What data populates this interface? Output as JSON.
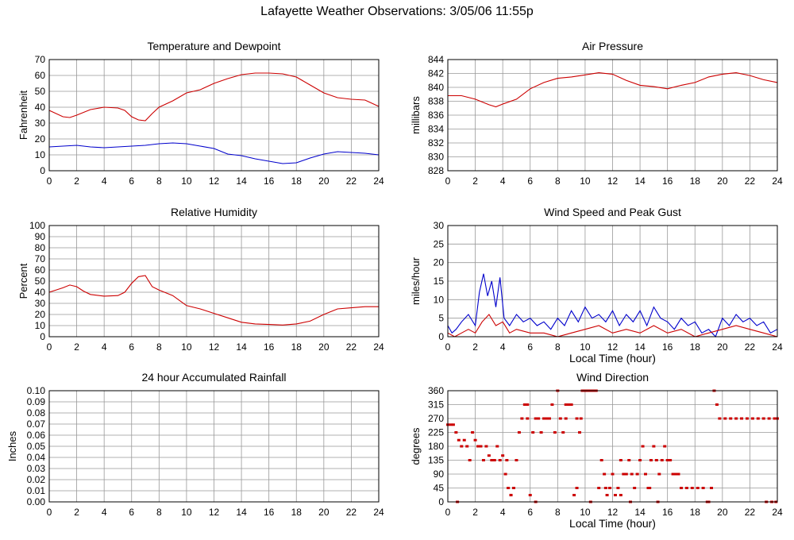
{
  "page_title": "Lafayette Weather Observations: 3/05/06 11:55p",
  "colors": {
    "red": "#cc0000",
    "blue": "#0000cc",
    "grid": "#999999",
    "frame": "#000000"
  },
  "chart_data": [
    {
      "id": "temp",
      "type": "line",
      "title": "Temperature and Dewpoint",
      "ylabel": "Fahrenheit",
      "xlabel": "",
      "xlim": [
        0,
        24
      ],
      "ylim": [
        0,
        70
      ],
      "xticks": [
        0,
        2,
        4,
        6,
        8,
        10,
        12,
        14,
        16,
        18,
        20,
        22,
        24
      ],
      "yticks": [
        0,
        10,
        20,
        30,
        40,
        50,
        60,
        70
      ],
      "grid": true,
      "series": [
        {
          "color": "#cc0000",
          "x": [
            0,
            1,
            1.5,
            2,
            3,
            4,
            5,
            5.5,
            6,
            6.5,
            7,
            7.5,
            8,
            9,
            10,
            11,
            12,
            13,
            14,
            15,
            16,
            17,
            18,
            19,
            20,
            21,
            22,
            23,
            24
          ],
          "y": [
            38,
            34,
            33.5,
            35,
            38.5,
            40,
            39.5,
            38,
            34,
            32,
            31.5,
            36,
            40,
            44,
            49,
            51,
            55,
            58,
            60.5,
            61.5,
            61.5,
            61,
            59,
            54,
            49,
            46,
            45,
            44.5,
            40.5
          ]
        },
        {
          "color": "#0000cc",
          "x": [
            0,
            1,
            2,
            3,
            4,
            5,
            6,
            7,
            8,
            9,
            10,
            11,
            12,
            13,
            14,
            15,
            16,
            17,
            18,
            19,
            20,
            21,
            22,
            23,
            24
          ],
          "y": [
            15,
            15.5,
            16,
            15,
            14.5,
            15,
            15.5,
            16,
            17,
            17.5,
            17,
            15.5,
            14,
            10.5,
            9.5,
            7.5,
            6,
            4.5,
            5,
            8,
            10.5,
            12,
            11.5,
            11,
            10
          ]
        }
      ]
    },
    {
      "id": "pressure",
      "type": "line",
      "title": "Air Pressure",
      "ylabel": "millibars",
      "xlabel": "",
      "xlim": [
        0,
        24
      ],
      "ylim": [
        828,
        844
      ],
      "xticks": [
        0,
        2,
        4,
        6,
        8,
        10,
        12,
        14,
        16,
        18,
        20,
        22,
        24
      ],
      "yticks": [
        828,
        830,
        832,
        834,
        836,
        838,
        840,
        842,
        844
      ],
      "grid": true,
      "series": [
        {
          "color": "#cc0000",
          "x": [
            0,
            1,
            2,
            3,
            3.5,
            4,
            5,
            6,
            7,
            8,
            9,
            10,
            11,
            12,
            13,
            14,
            15,
            16,
            17,
            18,
            19,
            20,
            21,
            22,
            23,
            24
          ],
          "y": [
            838.8,
            838.8,
            838.3,
            837.5,
            837.2,
            837.6,
            838.3,
            839.8,
            840.7,
            841.3,
            841.5,
            841.8,
            842.1,
            841.9,
            841,
            840.3,
            840.1,
            839.8,
            840.3,
            840.7,
            841.5,
            841.9,
            842.1,
            841.7,
            841.1,
            840.7
          ]
        }
      ]
    },
    {
      "id": "humidity",
      "type": "line",
      "title": "Relative Humidity",
      "ylabel": "Percent",
      "xlabel": "",
      "xlim": [
        0,
        24
      ],
      "ylim": [
        0,
        100
      ],
      "xticks": [
        0,
        2,
        4,
        6,
        8,
        10,
        12,
        14,
        16,
        18,
        20,
        22,
        24
      ],
      "yticks": [
        0,
        10,
        20,
        30,
        40,
        50,
        60,
        70,
        80,
        90,
        100
      ],
      "grid": true,
      "series": [
        {
          "color": "#cc0000",
          "x": [
            0,
            1,
            1.5,
            2,
            2.5,
            3,
            4,
            5,
            5.5,
            6,
            6.5,
            7,
            7.5,
            8,
            9,
            10,
            11,
            12,
            13,
            14,
            15,
            16,
            17,
            18,
            19,
            20,
            21,
            22,
            23,
            24
          ],
          "y": [
            40,
            44,
            46.5,
            45,
            41,
            38,
            36.5,
            37,
            40,
            48,
            54,
            55,
            45,
            42,
            37,
            28,
            25,
            21,
            17,
            13,
            11.5,
            11,
            10.5,
            11.5,
            14,
            20,
            25,
            26,
            27,
            27
          ]
        }
      ]
    },
    {
      "id": "wind",
      "type": "line",
      "title": "Wind Speed and Peak Gust",
      "ylabel": "miles/hour",
      "xlabel": "Local Time (hour)",
      "xlim": [
        0,
        24
      ],
      "ylim": [
        0,
        30
      ],
      "xticks": [
        0,
        2,
        4,
        6,
        8,
        10,
        12,
        14,
        16,
        18,
        20,
        22,
        24
      ],
      "yticks": [
        0,
        5,
        10,
        15,
        20,
        25,
        30
      ],
      "grid": true,
      "series": [
        {
          "color": "#0000cc",
          "x": [
            0,
            0.3,
            0.6,
            1,
            1.5,
            2,
            2.3,
            2.6,
            2.9,
            3.2,
            3.5,
            3.8,
            4.1,
            4.5,
            5,
            5.5,
            6,
            6.5,
            7,
            7.5,
            8,
            8.5,
            9,
            9.5,
            10,
            10.5,
            11,
            11.5,
            12,
            12.5,
            13,
            13.5,
            14,
            14.5,
            15,
            15.5,
            16,
            16.5,
            17,
            17.5,
            18,
            18.5,
            19,
            19.5,
            20,
            20.5,
            21,
            21.5,
            22,
            22.5,
            23,
            23.5,
            24
          ],
          "y": [
            3,
            1,
            2,
            4,
            6,
            3,
            12,
            17,
            11,
            15,
            8,
            16,
            5,
            3,
            6,
            4,
            5,
            3,
            4,
            2,
            5,
            3,
            7,
            4,
            8,
            5,
            6,
            4,
            7,
            3,
            6,
            4,
            7,
            3,
            8,
            5,
            4,
            2,
            5,
            3,
            4,
            1,
            2,
            0,
            5,
            3,
            6,
            4,
            5,
            3,
            4,
            1,
            2
          ]
        },
        {
          "color": "#cc0000",
          "x": [
            0,
            0.5,
            1,
            1.5,
            2,
            2.5,
            3,
            3.5,
            4,
            4.5,
            5,
            6,
            7,
            8,
            9,
            10,
            11,
            12,
            13,
            14,
            15,
            16,
            17,
            18,
            19,
            20,
            21,
            22,
            23,
            24
          ],
          "y": [
            1,
            0,
            1,
            2,
            1,
            4,
            6,
            3,
            4,
            1,
            2,
            1,
            1,
            0,
            1,
            2,
            3,
            1,
            2,
            1,
            3,
            1,
            2,
            0,
            1,
            2,
            3,
            2,
            1,
            0
          ]
        }
      ]
    },
    {
      "id": "rain",
      "type": "line",
      "title": "24 hour Accumulated Rainfall",
      "ylabel": "Inches",
      "xlabel": "",
      "xlim": [
        0,
        24
      ],
      "ylim": [
        0,
        0.1
      ],
      "xticks": [
        0,
        2,
        4,
        6,
        8,
        10,
        12,
        14,
        16,
        18,
        20,
        22,
        24
      ],
      "yticks": [
        "0.00",
        "0.01",
        "0.02",
        "0.03",
        "0.04",
        "0.05",
        "0.06",
        "0.07",
        "0.08",
        "0.09",
        "0.10"
      ],
      "grid": true,
      "series": [
        {
          "color": "#cc0000",
          "x": [
            0,
            24
          ],
          "y": [
            0,
            0
          ]
        }
      ]
    },
    {
      "id": "winddir",
      "type": "scatter",
      "title": "Wind Direction",
      "ylabel": "degrees",
      "xlabel": "Local Time (hour)",
      "xlim": [
        0,
        24
      ],
      "ylim": [
        0,
        360
      ],
      "xticks": [
        0,
        2,
        4,
        6,
        8,
        10,
        12,
        14,
        16,
        18,
        20,
        22,
        24
      ],
      "yticks": [
        0,
        45,
        90,
        135,
        180,
        225,
        270,
        315,
        360
      ],
      "grid": true,
      "series": [
        {
          "color": "#cc0000",
          "x": [
            0,
            0.2,
            0.4,
            0.6,
            0.8,
            1.0,
            1.2,
            1.4,
            1.6,
            1.8,
            2.0,
            2.2,
            2.4,
            2.6,
            2.8,
            3.0,
            3.2,
            3.4,
            3.6,
            3.8,
            4.0,
            4.2,
            4.4,
            4.6,
            4.8,
            5.0,
            5.2,
            5.4,
            5.6,
            5.8,
            6.0,
            6.2,
            6.4,
            6.6,
            6.8,
            7.0,
            7.2,
            7.4,
            7.6,
            7.8,
            8.0,
            8.2,
            8.4,
            8.6,
            8.8,
            9.0,
            9.2,
            9.4,
            9.6,
            9.8,
            10.0,
            10.2,
            10.4,
            10.6,
            10.8,
            11.0,
            11.2,
            11.4,
            11.6,
            11.8,
            12.0,
            12.2,
            12.4,
            12.6,
            12.8,
            13.0,
            13.2,
            13.4,
            13.6,
            13.8,
            14.0,
            14.2,
            14.4,
            14.6,
            14.8,
            15.0,
            15.2,
            15.4,
            15.6,
            15.8,
            16.0,
            16.2,
            16.4,
            16.6,
            16.8,
            17.0,
            17.4,
            17.8,
            18.2,
            18.6,
            19.0,
            19.2,
            19.4,
            19.6,
            19.8,
            20.2,
            20.6,
            21.0,
            21.4,
            21.8,
            22.2,
            22.6,
            23.0,
            23.4,
            23.8,
            24.0,
            0.7,
            2.3,
            4.3,
            4.6,
            5.8,
            6.4,
            8.6,
            9.4,
            9.7,
            10.4,
            11.5,
            12.6,
            13.3,
            14.7,
            15.3,
            18.9,
            23.2,
            23.6,
            23.9
          ],
          "y": [
            250,
            250,
            250,
            225,
            200,
            180,
            200,
            180,
            135,
            225,
            200,
            180,
            180,
            135,
            180,
            150,
            135,
            135,
            180,
            135,
            150,
            90,
            45,
            22,
            45,
            135,
            225,
            270,
            315,
            270,
            22,
            225,
            270,
            270,
            225,
            270,
            270,
            270,
            315,
            225,
            360,
            270,
            225,
            270,
            315,
            315,
            22,
            270,
            225,
            360,
            360,
            360,
            360,
            360,
            360,
            45,
            135,
            90,
            22,
            45,
            90,
            22,
            45,
            22,
            90,
            90,
            135,
            90,
            45,
            90,
            135,
            180,
            90,
            45,
            135,
            180,
            135,
            90,
            135,
            180,
            135,
            135,
            90,
            90,
            90,
            45,
            45,
            45,
            45,
            45,
            0,
            45,
            360,
            315,
            270,
            270,
            270,
            270,
            270,
            270,
            270,
            270,
            270,
            270,
            270,
            270,
            0,
            180,
            135,
            22,
            315,
            0,
            315,
            45,
            270,
            0,
            45,
            135,
            0,
            45,
            0,
            0,
            0,
            0,
            0
          ]
        }
      ]
    }
  ]
}
